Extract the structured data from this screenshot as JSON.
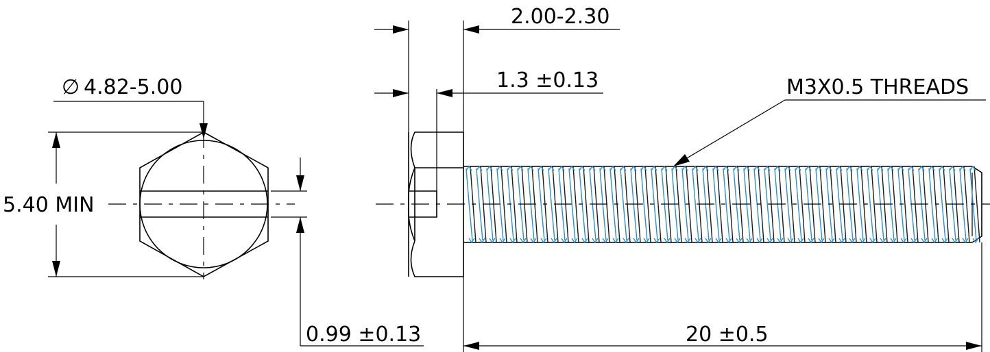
{
  "dimensions": {
    "head_diameter": "4.82-5.00",
    "diameter_symbol": "∅",
    "across_flats": "5.40 MIN",
    "slot_width": "0.99 ±0.13",
    "head_height": "2.00-2.30",
    "slot_depth": "1.3 ±0.13",
    "length": "20 ±0.5",
    "thread_callout": "M3X0.5 THREADS"
  },
  "colors": {
    "line": "#000000",
    "thread_highlight": "#2a8fd6",
    "background": "#ffffff"
  }
}
